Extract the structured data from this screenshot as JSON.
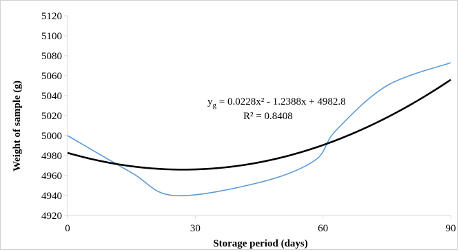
{
  "chart_data": {
    "type": "line",
    "title": "",
    "xlabel": "Storage period (days)",
    "ylabel": "Weight of sample (g)",
    "xlim": [
      0,
      90
    ],
    "ylim": [
      4920,
      5120
    ],
    "x_ticks": [
      0,
      30,
      60,
      90
    ],
    "y_ticks": [
      4920,
      4940,
      4960,
      4980,
      5000,
      5020,
      5040,
      5060,
      5080,
      5100,
      5120
    ],
    "grid": false,
    "legend": "none",
    "series": [
      {
        "color": "#5b9bd5",
        "smooth": true,
        "x": [
          0,
          15,
          25,
          45,
          58,
          63,
          75,
          90
        ],
        "y": [
          5000,
          4963,
          4940,
          4953,
          4975,
          5005,
          5050,
          5073
        ]
      },
      {
        "color": "#000000",
        "trendline": "polynomial",
        "coefficients": [
          0.0228,
          -1.2388,
          4982.8
        ],
        "x_range": [
          0,
          90
        ]
      }
    ],
    "annotations": {
      "equation_prefix": "y",
      "equation_subscript": "g",
      "equation_body": " = 0.0228x² - 1.2388x + 4982.8",
      "r_squared": "R² = 0.8408"
    }
  }
}
